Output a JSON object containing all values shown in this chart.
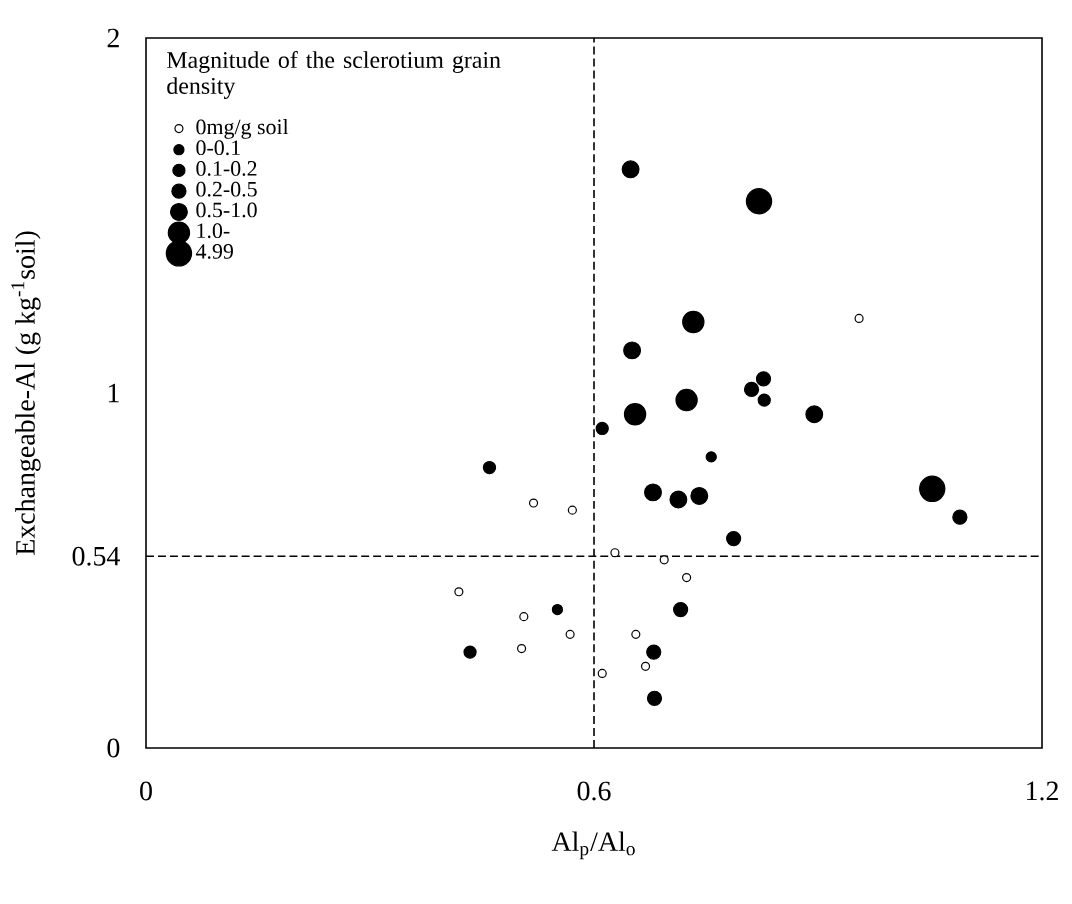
{
  "chart_data": {
    "type": "bubble",
    "xlabel": "Al$_{p}$/Al$_{o}$",
    "ylabel": "Exchangeable-Al (g kg$^{-1}$soil)",
    "legend_title": "Magnitude of the sclerotium grain density",
    "legend": "top left",
    "xlim": [
      0,
      1.2
    ],
    "ylim": [
      0,
      2
    ],
    "xticks": [
      0,
      0.6,
      1.2
    ],
    "yticks": [
      0,
      0.54,
      1,
      2
    ],
    "ref_lines": [
      {
        "axis": "x",
        "value": 0.6,
        "line_style": "dashed"
      },
      {
        "axis": "y",
        "value": 0.54,
        "line_style": "dashed"
      }
    ],
    "series": [
      {
        "name": "0mg/g soil",
        "color": "#ffffff",
        "x": [
          0.955,
          0.519,
          0.571,
          0.628,
          0.694,
          0.724,
          0.419,
          0.506,
          0.568,
          0.503,
          0.656,
          0.669,
          0.611
        ],
        "values": [
          1.21,
          0.69,
          0.67,
          0.55,
          0.53,
          0.48,
          0.44,
          0.37,
          0.32,
          0.28,
          0.32,
          0.23,
          0.21
        ],
        "sizes": [
          0.1,
          0.1,
          0.1,
          0.1,
          0.1,
          0.1,
          0.1,
          0.1,
          0.1,
          0.1,
          0.1,
          0.1,
          0.1
        ]
      },
      {
        "name": "0-0.1",
        "color": "#000000",
        "x": [
          0.757,
          0.551
        ],
        "values": [
          0.82,
          0.39
        ],
        "sizes": [
          0.16,
          0.16
        ]
      },
      {
        "name": "0.1-0.2",
        "color": "#000000",
        "x": [
          0.828,
          0.611,
          0.46,
          0.434
        ],
        "values": [
          0.98,
          0.9,
          0.79,
          0.27
        ],
        "sizes": [
          0.23,
          0.23,
          0.23,
          0.23
        ]
      },
      {
        "name": "0.2-0.5",
        "color": "#000000",
        "x": [
          0.827,
          0.811,
          1.09,
          0.787,
          0.716,
          0.68,
          0.681
        ],
        "values": [
          1.04,
          1.01,
          0.65,
          0.59,
          0.39,
          0.27,
          0.14
        ],
        "sizes": [
          0.31,
          0.31,
          0.31,
          0.31,
          0.31,
          0.31,
          0.31
        ]
      },
      {
        "name": "0.5-1.0",
        "color": "#000000",
        "x": [
          0.649,
          0.651,
          0.895,
          0.679,
          0.713,
          0.741
        ],
        "values": [
          1.63,
          1.12,
          0.94,
          0.72,
          0.7,
          0.71
        ],
        "sizes": [
          0.44,
          0.44,
          0.44,
          0.44,
          0.44,
          0.44
        ]
      },
      {
        "name": "1.0-",
        "color": "#000000",
        "x": [
          0.733,
          0.724,
          0.655
        ],
        "values": [
          1.2,
          0.98,
          0.94
        ],
        "sizes": [
          0.71,
          0.71,
          0.71
        ]
      },
      {
        "name": "4.99",
        "color": "#000000",
        "x": [
          0.821,
          1.053
        ],
        "values": [
          1.54,
          0.73
        ],
        "sizes": [
          1,
          1
        ]
      }
    ]
  }
}
